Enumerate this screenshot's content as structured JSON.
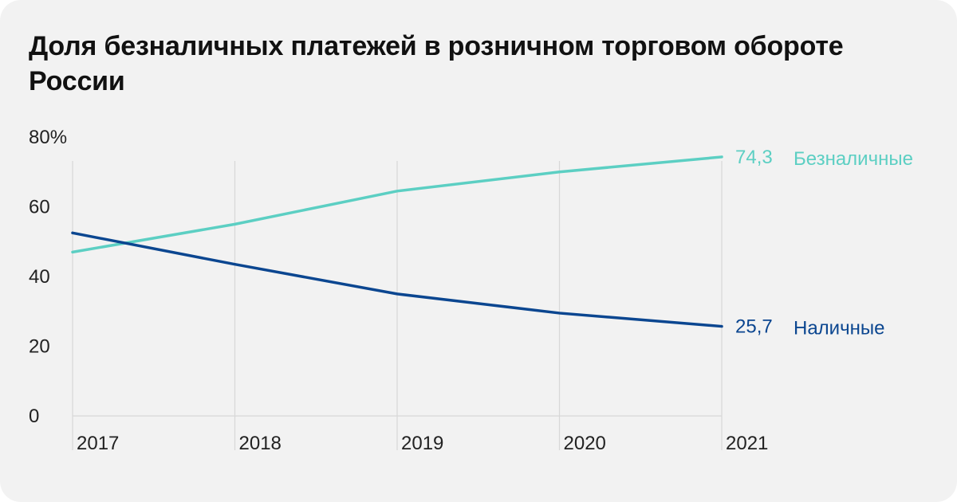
{
  "title": "Доля безналичных платежей в розничном торговом обороте России",
  "chart_data": {
    "type": "line",
    "title": "Доля безналичных платежей в розничном торговом обороте России",
    "x": [
      "2017",
      "2018",
      "2019",
      "2020",
      "2021"
    ],
    "ylim": [
      0,
      80
    ],
    "y_ticks": [
      "0",
      "20",
      "40",
      "60",
      "80%"
    ],
    "grid": "vertical",
    "series": [
      {
        "name": "Безналичные",
        "values": [
          47,
          55,
          64.5,
          70,
          74.3
        ],
        "end_label": "74,3",
        "color": "#5ccfc3"
      },
      {
        "name": "Наличные",
        "values": [
          52.5,
          43.5,
          35,
          29.5,
          25.7
        ],
        "end_label": "25,7",
        "color": "#0b4690"
      }
    ]
  }
}
